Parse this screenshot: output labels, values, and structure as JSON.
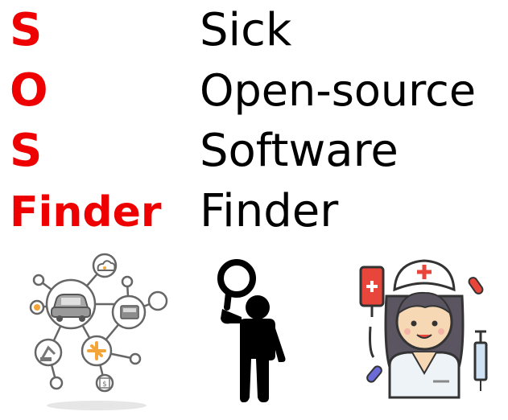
{
  "acronym": {
    "row1": "S",
    "row2": "O",
    "row3": "S",
    "row4": "Finder"
  },
  "expansion": {
    "row1": "Sick",
    "row2": "Open-source",
    "row3": "Software",
    "row4": "Finder"
  },
  "colors": {
    "acronym": "#ee0000",
    "expansion": "#000000",
    "icon_stroke": "#666666",
    "nurse_red": "#e8463a",
    "nurse_hair": "#5a5560",
    "nurse_skin": "#f7d8b5"
  },
  "icons": [
    "network-hub-icon",
    "magnifier-person-icon",
    "nurse-icon"
  ]
}
